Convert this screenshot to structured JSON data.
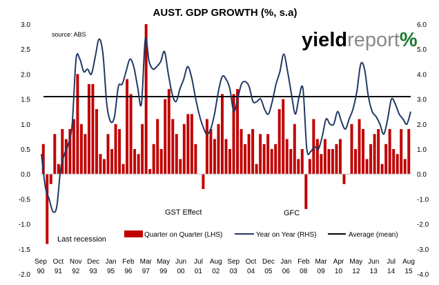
{
  "chart_data": {
    "type": "bar+line",
    "title": "AUST. GDP GROWTH (%, s.a)",
    "source": "source: ABS",
    "brand": {
      "yield": "yield",
      "report": "report",
      "pct": "%"
    },
    "colors": {
      "bar": "#c00000",
      "line": "#1f3864",
      "average": "#000000",
      "brand_green": "#1a7a32"
    },
    "ylim_left": [
      -2.0,
      3.0
    ],
    "ylim_right": [
      -4.0,
      6.0
    ],
    "yticks_left": [
      "3.0",
      "2.5",
      "2.0",
      "1.5",
      "1.0",
      "0.5",
      "0.0",
      "-0.5",
      "-1.0",
      "-1.5",
      "-2.0"
    ],
    "yticks_right": [
      "6.0",
      "5.0",
      "4.0",
      "3.0",
      "2.0",
      "1.0",
      "0.0",
      "-1.0",
      "-2.0",
      "-3.0",
      "-4.0"
    ],
    "xtick_months": [
      "Sep",
      "Oct",
      "Nov",
      "Dec",
      "Jan",
      "Feb",
      "Mar",
      "May",
      "Jun",
      "Jul",
      "Aug",
      "Sep",
      "Oct",
      "Dec",
      "Jan",
      "Feb",
      "Mar",
      "Apr",
      "May",
      "Jun",
      "Jul",
      "Aug"
    ],
    "xtick_years": [
      "90",
      "91",
      "92",
      "93",
      "95",
      "96",
      "97",
      "99",
      "00",
      "01",
      "02",
      "03",
      "04",
      "05",
      "06",
      "08",
      "09",
      "10",
      "12",
      "13",
      "14",
      "15"
    ],
    "series": [
      {
        "name": "Quarter on Quarter (LHS)",
        "axis": "left",
        "values": [
          0.6,
          -1.4,
          -0.2,
          0.8,
          0.2,
          0.9,
          0.7,
          0.9,
          1.1,
          2.0,
          1.0,
          0.8,
          1.8,
          1.8,
          1.3,
          0.4,
          0.3,
          0.8,
          0.5,
          1.0,
          0.9,
          0.2,
          1.9,
          1.6,
          0.5,
          0.4,
          1.0,
          3.0,
          0.1,
          0.6,
          1.1,
          0.5,
          1.5,
          1.7,
          1.1,
          0.8,
          0.3,
          1.0,
          1.2,
          1.2,
          0.6,
          0.0,
          -0.3,
          1.1,
          0.9,
          0.7,
          1.0,
          1.6,
          0.7,
          0.5,
          1.6,
          1.7,
          0.9,
          0.6,
          0.8,
          0.9,
          0.2,
          0.8,
          0.6,
          0.8,
          0.5,
          0.6,
          1.3,
          1.5,
          0.7,
          0.5,
          1.0,
          0.3,
          0.5,
          -0.7,
          0.3,
          1.1,
          0.7,
          0.4,
          0.7,
          0.5,
          0.5,
          0.6,
          0.7,
          -0.2,
          0.0,
          1.0,
          0.5,
          1.1,
          0.9,
          0.3,
          0.6,
          0.8,
          0.9,
          0.2,
          0.6,
          0.9,
          0.5,
          0.4,
          0.9,
          0.3,
          0.9
        ]
      },
      {
        "name": "Year on Year (RHS)",
        "axis": "right",
        "values": [
          0.8,
          -0.5,
          -1.0,
          -1.5,
          -1.3,
          0.2,
          0.8,
          1.2,
          2.0,
          4.6,
          4.6,
          4.1,
          4.2,
          4.0,
          4.7,
          5.4,
          4.8,
          2.8,
          2.1,
          2.3,
          3.5,
          3.6,
          4.1,
          4.6,
          4.3,
          3.5,
          2.8,
          5.4,
          4.5,
          4.2,
          4.3,
          4.5,
          4.9,
          4.0,
          3.2,
          2.9,
          3.4,
          3.8,
          4.3,
          3.9,
          3.1,
          2.4,
          1.9,
          1.6,
          1.8,
          2.4,
          3.3,
          3.9,
          3.8,
          3.4,
          2.5,
          3.0,
          3.6,
          3.7,
          3.5,
          2.9,
          2.9,
          3.0,
          2.6,
          2.4,
          2.9,
          3.6,
          4.1,
          4.8,
          4.1,
          3.2,
          2.4,
          3.1,
          3.4,
          1.0,
          0.9,
          1.1,
          1.0,
          1.5,
          2.2,
          2.0,
          2.0,
          2.5,
          2.1,
          1.8,
          2.2,
          2.6,
          3.3,
          4.4,
          4.2,
          3.1,
          2.5,
          2.3,
          2.0,
          1.6,
          2.2,
          3.0,
          2.8,
          2.4,
          2.2,
          2.0,
          2.5
        ]
      },
      {
        "name": "Average (mean)",
        "axis": "left",
        "value": 1.55
      }
    ],
    "annotations": [
      "Last recession",
      "GST Effect",
      "GFC"
    ],
    "legend_position": "bottom"
  }
}
